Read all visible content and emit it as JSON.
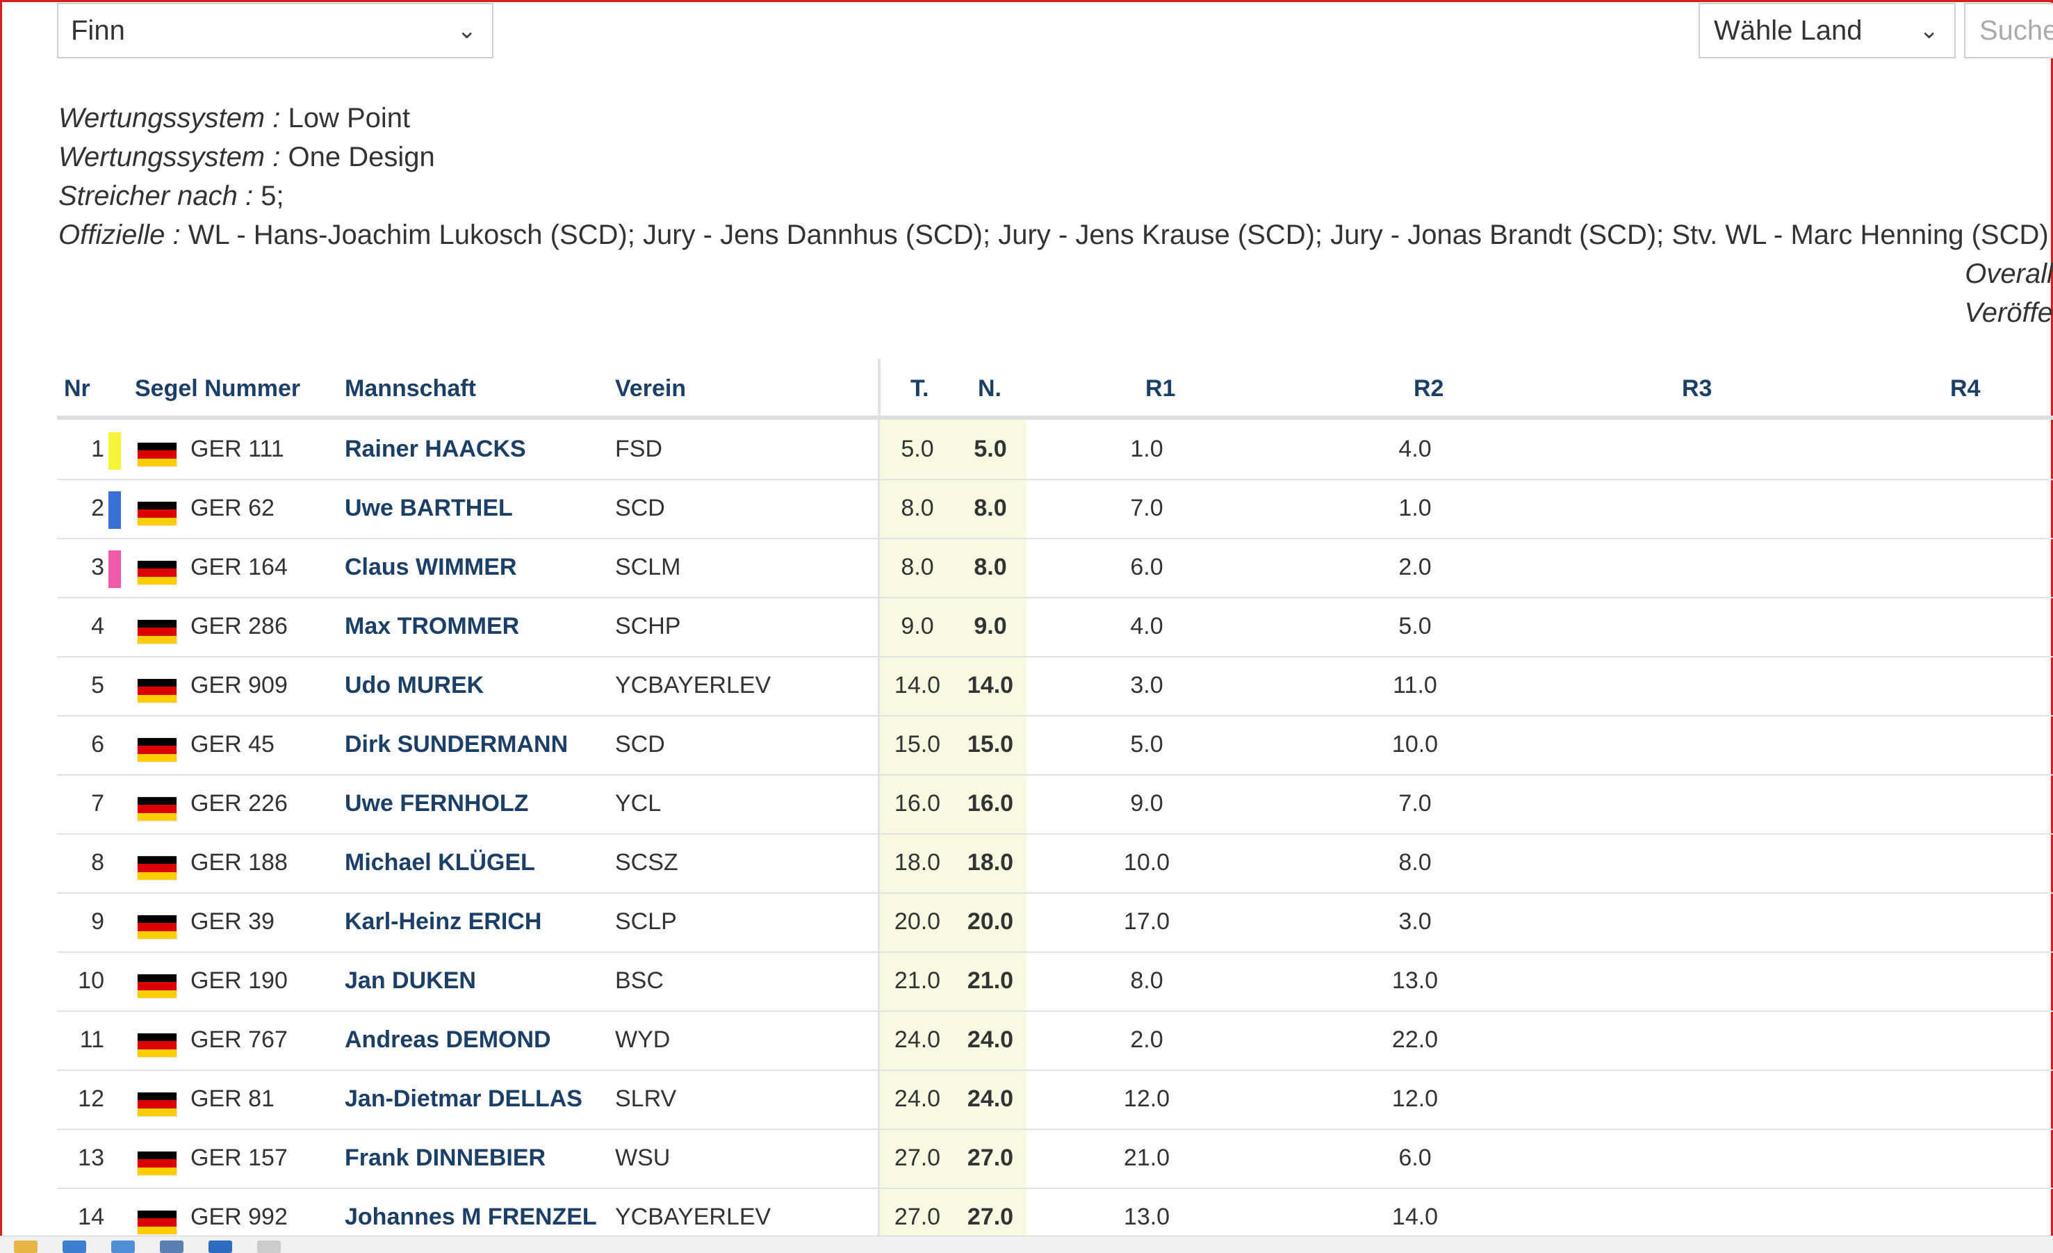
{
  "filters": {
    "boat_class": "Finn",
    "country": "Wähle Land",
    "search_placeholder": "Suche"
  },
  "info_lines": [
    {
      "label": "Wertungssystem :",
      "value": " Low Point"
    },
    {
      "label": "Wertungssystem :",
      "value": " One Design"
    },
    {
      "label": "Streicher nach :",
      "value": " 5;"
    },
    {
      "label": "Offizielle :",
      "value": " WL - Hans-Joachim Lukosch (SCD); Jury - Jens Dannhus (SCD); Jury - Jens Krause (SCD); Jury - Jonas Brandt (SCD); Stv. WL - Marc Henning (SCD)"
    }
  ],
  "right_notes": [
    "Overall",
    "Veröffe"
  ],
  "table": {
    "headers": {
      "nr": "Nr",
      "sail": "Segel Nummer",
      "team": "Mannschaft",
      "club": "Verein",
      "t": "T.",
      "n": "N.",
      "r1": "R1",
      "r2": "R2",
      "r3": "R3",
      "r4": "R4"
    },
    "rows": [
      {
        "nr": "1",
        "marker": "#f5f53a",
        "sail": "GER 111",
        "team": "Rainer HAACKS",
        "club": "FSD",
        "t": "5.0",
        "n": "5.0",
        "r1": "1.0",
        "r2": "4.0"
      },
      {
        "nr": "2",
        "marker": "#3a6fd8",
        "sail": "GER 62",
        "team": "Uwe BARTHEL",
        "club": "SCD",
        "t": "8.0",
        "n": "8.0",
        "r1": "7.0",
        "r2": "1.0"
      },
      {
        "nr": "3",
        "marker": "#f05aa8",
        "sail": "GER 164",
        "team": "Claus WIMMER",
        "club": "SCLM",
        "t": "8.0",
        "n": "8.0",
        "r1": "6.0",
        "r2": "2.0"
      },
      {
        "nr": "4",
        "marker": "",
        "sail": "GER 286",
        "team": "Max TROMMER",
        "club": "SCHP",
        "t": "9.0",
        "n": "9.0",
        "r1": "4.0",
        "r2": "5.0"
      },
      {
        "nr": "5",
        "marker": "",
        "sail": "GER 909",
        "team": "Udo MUREK",
        "club": "YCBAYERLEV",
        "t": "14.0",
        "n": "14.0",
        "r1": "3.0",
        "r2": "11.0"
      },
      {
        "nr": "6",
        "marker": "",
        "sail": "GER 45",
        "team": "Dirk SUNDERMANN",
        "club": "SCD",
        "t": "15.0",
        "n": "15.0",
        "r1": "5.0",
        "r2": "10.0"
      },
      {
        "nr": "7",
        "marker": "",
        "sail": "GER 226",
        "team": "Uwe FERNHOLZ",
        "club": "YCL",
        "t": "16.0",
        "n": "16.0",
        "r1": "9.0",
        "r2": "7.0"
      },
      {
        "nr": "8",
        "marker": "",
        "sail": "GER 188",
        "team": "Michael KLÜGEL",
        "club": "SCSZ",
        "t": "18.0",
        "n": "18.0",
        "r1": "10.0",
        "r2": "8.0"
      },
      {
        "nr": "9",
        "marker": "",
        "sail": "GER 39",
        "team": "Karl-Heinz ERICH",
        "club": "SCLP",
        "t": "20.0",
        "n": "20.0",
        "r1": "17.0",
        "r2": "3.0"
      },
      {
        "nr": "10",
        "marker": "",
        "sail": "GER 190",
        "team": "Jan DUKEN",
        "club": "BSC",
        "t": "21.0",
        "n": "21.0",
        "r1": "8.0",
        "r2": "13.0"
      },
      {
        "nr": "11",
        "marker": "",
        "sail": "GER 767",
        "team": "Andreas DEMOND",
        "club": "WYD",
        "t": "24.0",
        "n": "24.0",
        "r1": "2.0",
        "r2": "22.0"
      },
      {
        "nr": "12",
        "marker": "",
        "sail": "GER 81",
        "team": "Jan-Dietmar DELLAS",
        "club": "SLRV",
        "t": "24.0",
        "n": "24.0",
        "r1": "12.0",
        "r2": "12.0"
      },
      {
        "nr": "13",
        "marker": "",
        "sail": "GER 157",
        "team": "Frank DINNEBIER",
        "club": "WSU",
        "t": "27.0",
        "n": "27.0",
        "r1": "21.0",
        "r2": "6.0"
      },
      {
        "nr": "14",
        "marker": "",
        "sail": "GER 992",
        "team": "Johannes M FRENZEL",
        "club": "YCBAYERLEV",
        "t": "27.0",
        "n": "27.0",
        "r1": "13.0",
        "r2": "14.0"
      }
    ]
  },
  "colors": {
    "header_text": "#1b3f66",
    "score_highlight": "#f9f9e2",
    "flag_black": "#000000",
    "flag_red": "#dd0000",
    "flag_gold": "#ffce00",
    "frame": "#d62020"
  }
}
